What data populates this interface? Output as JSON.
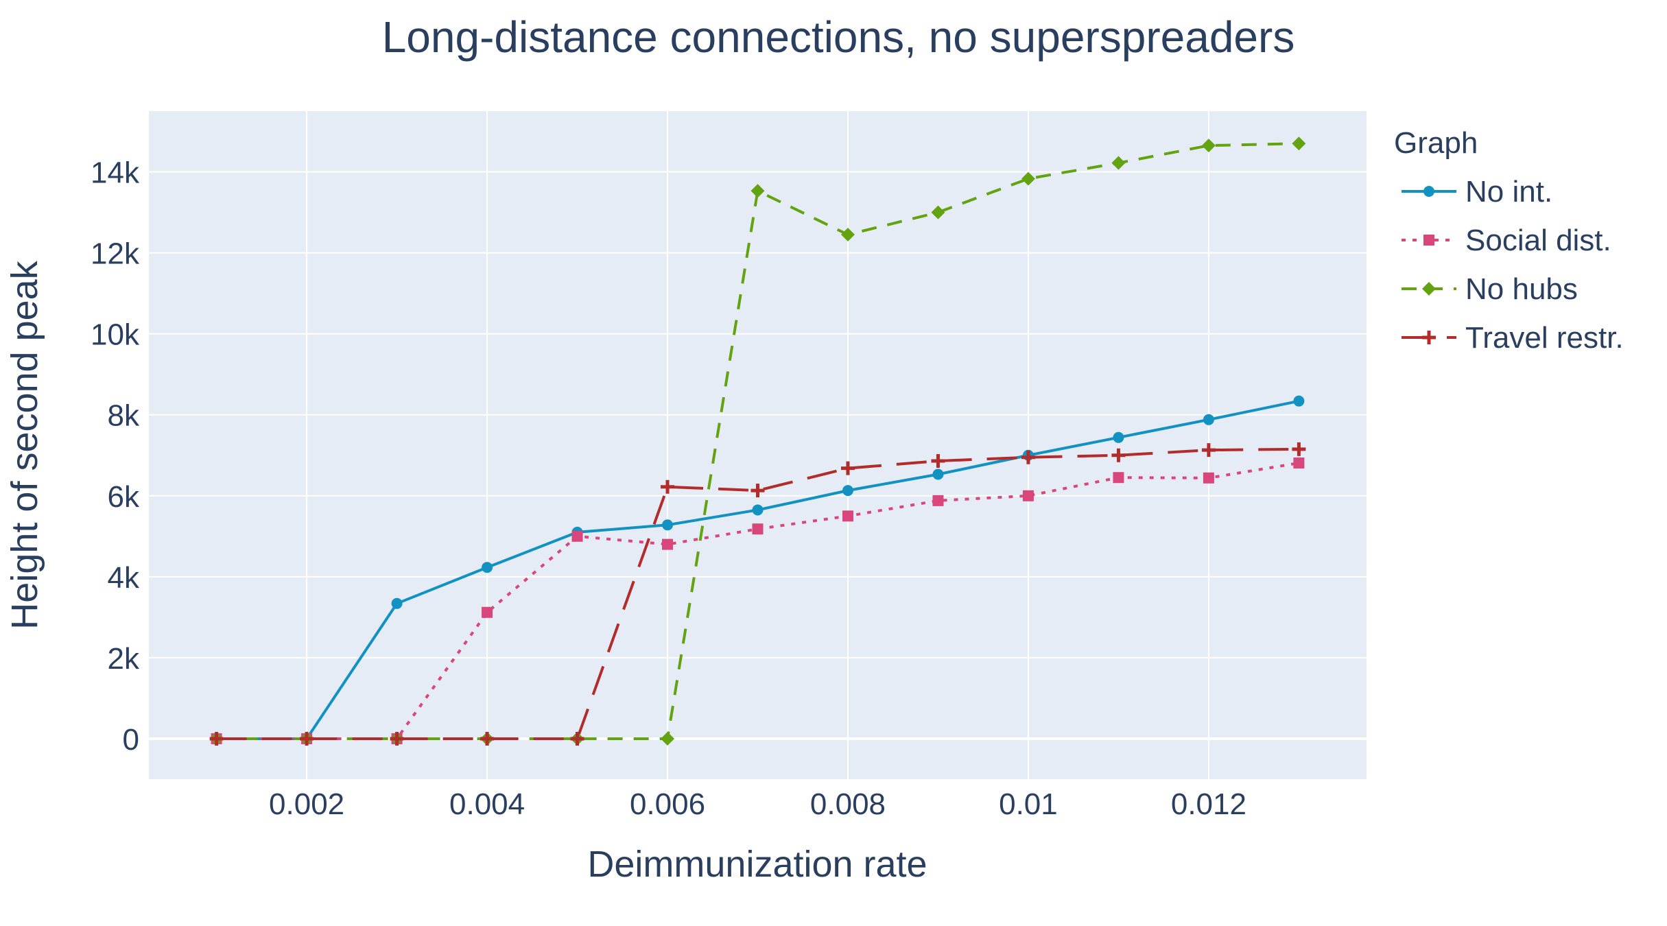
{
  "chart_data": {
    "type": "line",
    "title": "Long-distance connections, no superspreaders",
    "xlabel": "Deimmunization rate",
    "ylabel": "Height of second peak",
    "xlim": [
      0.00025,
      0.01375
    ],
    "ylim": [
      -1000,
      15500
    ],
    "grid": true,
    "legend_title": "Graph",
    "legend_position": "right",
    "x_ticks": [
      {
        "value": 0.002,
        "label": "0.002"
      },
      {
        "value": 0.004,
        "label": "0.004"
      },
      {
        "value": 0.006,
        "label": "0.006"
      },
      {
        "value": 0.008,
        "label": "0.008"
      },
      {
        "value": 0.01,
        "label": "0.01"
      },
      {
        "value": 0.012,
        "label": "0.012"
      }
    ],
    "y_ticks": [
      {
        "value": 0,
        "label": "0"
      },
      {
        "value": 2000,
        "label": "2k"
      },
      {
        "value": 4000,
        "label": "4k"
      },
      {
        "value": 6000,
        "label": "6k"
      },
      {
        "value": 8000,
        "label": "8k"
      },
      {
        "value": 10000,
        "label": "10k"
      },
      {
        "value": 12000,
        "label": "12k"
      },
      {
        "value": 14000,
        "label": "14k"
      }
    ],
    "x": [
      0.001,
      0.002,
      0.003,
      0.004,
      0.005,
      0.006,
      0.007,
      0.008,
      0.009,
      0.01,
      0.011,
      0.012,
      0.013
    ],
    "series": [
      {
        "name": "No int.",
        "color": "#1192c1",
        "dash": "solid",
        "marker": "circle",
        "values": [
          0,
          0,
          3340,
          4230,
          5100,
          5280,
          5650,
          6130,
          6530,
          7000,
          7440,
          7880,
          8340
        ]
      },
      {
        "name": "Social dist.",
        "color": "#d9467b",
        "dash": "dot",
        "marker": "square",
        "values": [
          0,
          0,
          0,
          3120,
          5000,
          4800,
          5180,
          5500,
          5880,
          6000,
          6450,
          6440,
          6810
        ]
      },
      {
        "name": "No hubs",
        "color": "#62a30f",
        "dash": "dash",
        "marker": "diamond",
        "values": [
          0,
          0,
          0,
          0,
          0,
          0,
          13530,
          12450,
          13000,
          13830,
          14220,
          14650,
          14700
        ]
      },
      {
        "name": "Travel restr.",
        "color": "#b22c2c",
        "dash": "longdash",
        "marker": "cross",
        "values": [
          0,
          0,
          0,
          0,
          0,
          6220,
          6130,
          6680,
          6860,
          6950,
          7000,
          7130,
          7150
        ]
      }
    ]
  }
}
